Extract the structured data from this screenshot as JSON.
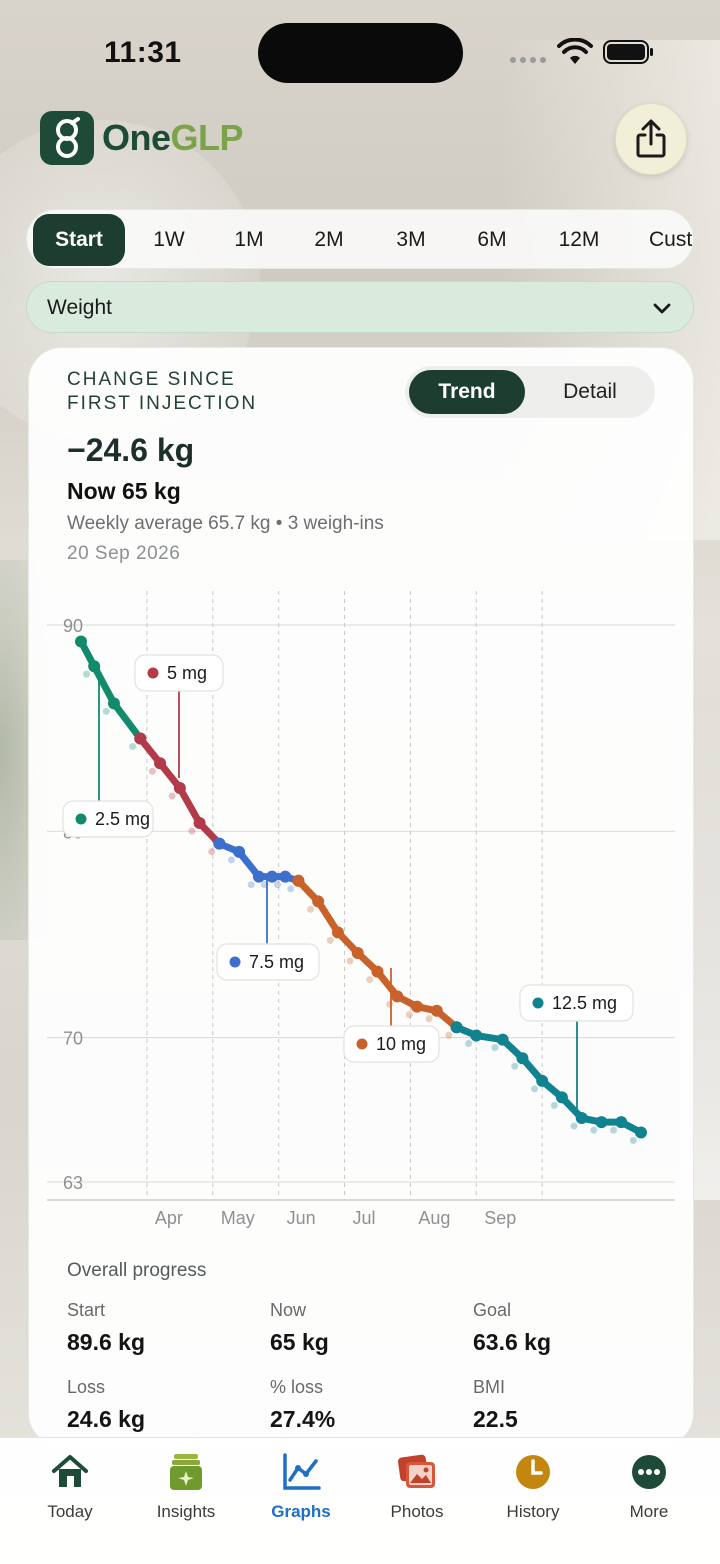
{
  "status_bar": {
    "time": "11:31"
  },
  "app": {
    "logo_part1": "One",
    "logo_part2": "GLP"
  },
  "range_tabs": [
    "Start",
    "1W",
    "1M",
    "2M",
    "3M",
    "6M",
    "12M",
    "Custom"
  ],
  "range_selected": "Start",
  "metric": {
    "selected": "Weight"
  },
  "card": {
    "caption_line1": "CHANGE SINCE",
    "caption_line2": "FIRST INJECTION",
    "toggle": {
      "trend": "Trend",
      "detail": "Detail",
      "selected": "Trend"
    },
    "change": "−24.6 kg",
    "now": "Now 65 kg",
    "weekly": "Weekly average 65.7 kg • 3 weigh-ins",
    "date": "20 Sep 2026"
  },
  "chart_data": {
    "type": "line",
    "ylim": [
      63,
      90
    ],
    "y_ticks": [
      90,
      80,
      70,
      63
    ],
    "x_ticks": [
      "Apr",
      "May",
      "Jun",
      "Jul",
      "Aug",
      "Sep"
    ],
    "grid": true,
    "series": [
      {
        "name": "2.5 mg",
        "color": "#138a6c",
        "x": [
          0.0,
          0.6,
          1.5,
          2.7
        ],
        "y": [
          89.2,
          88.0,
          86.2,
          84.5
        ]
      },
      {
        "name": "5 mg",
        "color": "#b33a48",
        "x": [
          2.7,
          3.6,
          4.5,
          5.4,
          6.3
        ],
        "y": [
          84.5,
          83.3,
          82.1,
          80.4,
          79.4
        ]
      },
      {
        "name": "7.5 mg",
        "color": "#3d6fcf",
        "x": [
          6.3,
          7.2,
          8.1,
          8.7,
          9.3,
          9.9
        ],
        "y": [
          79.4,
          79.0,
          77.8,
          77.8,
          77.8,
          77.6
        ]
      },
      {
        "name": "10 mg",
        "color": "#c9622a",
        "x": [
          9.9,
          10.8,
          11.7,
          12.6,
          13.5,
          14.4,
          15.3,
          16.2,
          17.1
        ],
        "y": [
          77.6,
          76.6,
          75.1,
          74.1,
          73.2,
          72.0,
          71.5,
          71.3,
          70.5
        ]
      },
      {
        "name": "12.5 mg",
        "color": "#118290",
        "x": [
          17.1,
          18.0,
          19.2,
          20.1,
          21.0,
          21.9,
          22.8,
          23.7,
          24.6,
          25.5
        ],
        "y": [
          70.5,
          70.1,
          69.9,
          69.0,
          67.9,
          67.1,
          66.1,
          65.9,
          65.9,
          65.4
        ]
      }
    ],
    "x_month_starts": [
      3.0,
      6.0,
      9.0,
      12.0,
      15.0,
      18.0,
      21.0
    ],
    "annotations": [
      {
        "label": "2.5 mg",
        "color": "#138a6c"
      },
      {
        "label": "5 mg",
        "color": "#b33a48"
      },
      {
        "label": "7.5 mg",
        "color": "#3d6fcf"
      },
      {
        "label": "10 mg",
        "color": "#c9622a"
      },
      {
        "label": "12.5 mg",
        "color": "#118290"
      }
    ]
  },
  "progress": {
    "title": "Overall progress",
    "stats": [
      {
        "label": "Start",
        "value": "89.6 kg"
      },
      {
        "label": "Now",
        "value": "65 kg"
      },
      {
        "label": "Goal",
        "value": "63.6 kg"
      },
      {
        "label": "Loss",
        "value": "24.6 kg"
      },
      {
        "label": "% loss",
        "value": "27.4%"
      },
      {
        "label": "BMI",
        "value": "22.5"
      }
    ]
  },
  "tab_bar": {
    "items": [
      {
        "label": "Today",
        "icon": "house-icon"
      },
      {
        "label": "Insights",
        "icon": "sparkle-stack-icon"
      },
      {
        "label": "Graphs",
        "icon": "line-chart-icon"
      },
      {
        "label": "Photos",
        "icon": "photos-icon"
      },
      {
        "label": "History",
        "icon": "clock-icon"
      },
      {
        "label": "More",
        "icon": "ellipsis-circle-icon"
      }
    ],
    "selected": "Graphs"
  }
}
